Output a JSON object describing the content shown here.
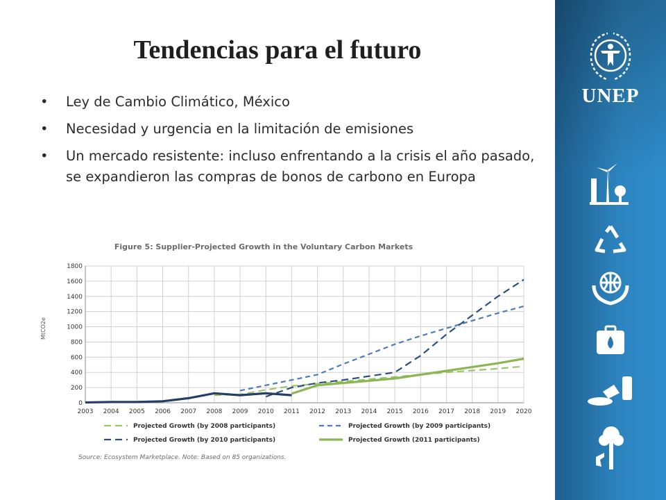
{
  "slide": {
    "title": "Tendencias para el futuro",
    "bullets": [
      "Ley de Cambio Climático, México",
      "Necesidad y urgencia en la limitación de emisiones",
      "Un mercado resistente: incluso enfrentando a la crisis el año pasado, se expandieron las compras de bonos de carbono en Europa"
    ]
  },
  "sidebar": {
    "logo_text": "UNEP",
    "icons": [
      "unep-emblem-icon",
      "wind-energy-icon",
      "recycle-icon",
      "globe-hands-icon",
      "water-case-icon",
      "chemical-spill-icon",
      "tree-tap-icon"
    ]
  },
  "chart_data": {
    "type": "line",
    "title": "Figure 5: Supplier-Projected Growth in the Voluntary Carbon Markets",
    "ylabel": "MtCO2e",
    "xlabel": "",
    "ylim": [
      0,
      1800
    ],
    "yticks": [
      0,
      200,
      400,
      600,
      800,
      1000,
      1200,
      1400,
      1600,
      1800
    ],
    "x": [
      "2003",
      "2004",
      "2005",
      "2006",
      "2007",
      "2008",
      "2009",
      "2010",
      "2011",
      "2012",
      "2013",
      "2014",
      "2015",
      "2016",
      "2017",
      "2018",
      "2019",
      "2020"
    ],
    "grid": true,
    "legend_position": "bottom",
    "series": [
      {
        "name": "Projected Growth (by 2008 participants)",
        "color": "#9dc46a",
        "dash": "dashed-long",
        "points": [
          [
            "2008",
            100
          ],
          [
            "2009",
            110
          ],
          [
            "2010",
            170
          ],
          [
            "2011",
            220
          ],
          [
            "2012",
            250
          ],
          [
            "2013",
            280
          ],
          [
            "2014",
            310
          ],
          [
            "2015",
            340
          ],
          [
            "2016",
            370
          ],
          [
            "2017",
            400
          ],
          [
            "2018",
            425
          ],
          [
            "2019",
            450
          ],
          [
            "2020",
            480
          ]
        ]
      },
      {
        "name": "Projected Growth (by 2009 participants)",
        "color": "#4f7cb8",
        "dash": "dashed",
        "points": [
          [
            "2009",
            160
          ],
          [
            "2010",
            230
          ],
          [
            "2011",
            300
          ],
          [
            "2012",
            370
          ],
          [
            "2013",
            510
          ],
          [
            "2014",
            640
          ],
          [
            "2015",
            770
          ],
          [
            "2016",
            880
          ],
          [
            "2017",
            980
          ],
          [
            "2018",
            1080
          ],
          [
            "2019",
            1180
          ],
          [
            "2020",
            1270
          ]
        ]
      },
      {
        "name": "Projected Growth (by 2010 participants)",
        "color": "#2b4e7d",
        "dash": "dashed-long",
        "points": [
          [
            "2010",
            80
          ],
          [
            "2011",
            200
          ],
          [
            "2012",
            260
          ],
          [
            "2013",
            300
          ],
          [
            "2014",
            350
          ],
          [
            "2015",
            400
          ],
          [
            "2016",
            620
          ],
          [
            "2017",
            900
          ],
          [
            "2018",
            1150
          ],
          [
            "2019",
            1400
          ],
          [
            "2020",
            1620
          ]
        ]
      },
      {
        "name": "Projected Growth (2011 participants)",
        "color": "#8bb653",
        "dash": "solid",
        "points": [
          [
            "2011",
            120
          ],
          [
            "2012",
            230
          ],
          [
            "2013",
            260
          ],
          [
            "2014",
            290
          ],
          [
            "2015",
            320
          ],
          [
            "2016",
            370
          ],
          [
            "2017",
            420
          ],
          [
            "2018",
            470
          ],
          [
            "2019",
            520
          ],
          [
            "2020",
            580
          ]
        ]
      },
      {
        "name": "",
        "color": "#243e66",
        "dash": "solid",
        "points": [
          [
            "2003",
            5
          ],
          [
            "2004",
            10
          ],
          [
            "2005",
            10
          ],
          [
            "2006",
            20
          ],
          [
            "2007",
            60
          ],
          [
            "2008",
            125
          ],
          [
            "2009",
            100
          ],
          [
            "2010",
            125
          ],
          [
            "2011",
            100
          ]
        ]
      }
    ],
    "source": "Source: Ecosystem Marketplace. Note: Based on 85 organizations."
  }
}
